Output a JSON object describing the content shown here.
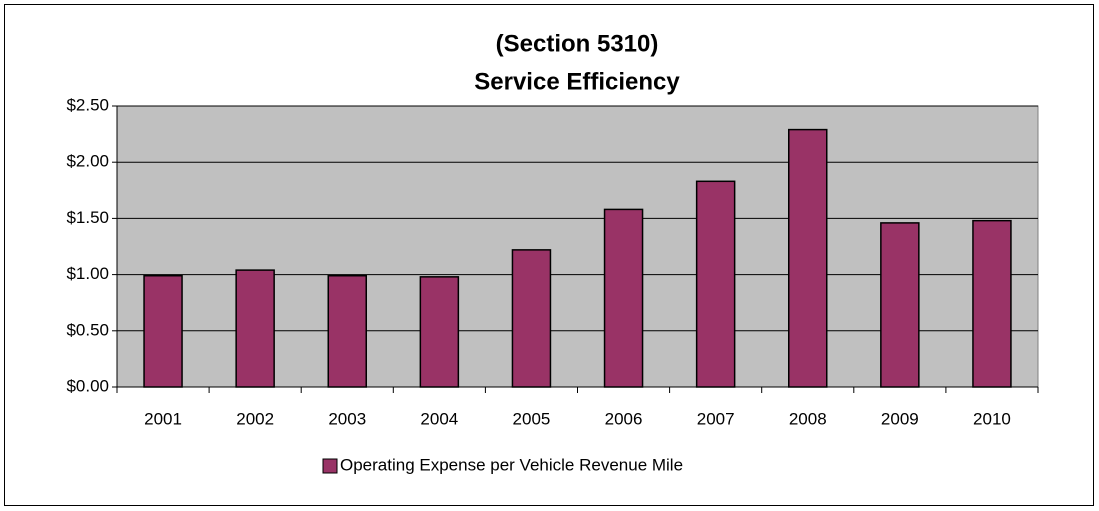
{
  "chart_data": {
    "type": "bar",
    "title": [
      "(Section 5310)",
      "Service Efficiency"
    ],
    "categories": [
      "2001",
      "2002",
      "2003",
      "2004",
      "2005",
      "2006",
      "2007",
      "2008",
      "2009",
      "2010"
    ],
    "series": [
      {
        "name": "Operating Expense per Vehicle Revenue Mile",
        "color": "#993366",
        "values": [
          0.99,
          1.04,
          0.99,
          0.98,
          1.22,
          1.58,
          1.83,
          2.29,
          1.46,
          1.48
        ]
      }
    ],
    "ylim": [
      0,
      2.5
    ],
    "yticks": [
      {
        "value": 0,
        "label": "$0.00"
      },
      {
        "value": 0.5,
        "label": "$0.50"
      },
      {
        "value": 1,
        "label": "$1.00"
      },
      {
        "value": 1.5,
        "label": "$1.50"
      },
      {
        "value": 2,
        "label": "$2.00"
      },
      {
        "value": 2.5,
        "label": "$2.50"
      }
    ],
    "grid": true,
    "legend": "bottom"
  }
}
